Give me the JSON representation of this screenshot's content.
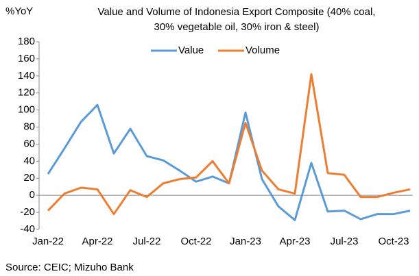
{
  "chart_data": {
    "type": "line",
    "title": [
      "Value and Volume of Indonesia Export Composite (40% coal,",
      "30% vegetable oil, 30% iron & steel)"
    ],
    "ylabel": "%YoY",
    "source": "Source: CEIC; Mizuho Bank",
    "categories": [
      "Jan-22",
      null,
      null,
      "Apr-22",
      null,
      null,
      "Jul-22",
      null,
      null,
      "Oct-22",
      null,
      null,
      "Jan-23",
      null,
      null,
      "Apr-23",
      null,
      null,
      "Jul-23",
      null,
      null,
      "Oct-23",
      null
    ],
    "series": [
      {
        "name": "Value",
        "color": "#5b9bd5",
        "values": [
          25,
          55,
          86,
          106,
          49,
          78,
          46,
          41,
          29,
          16,
          22,
          14,
          97,
          19,
          -13,
          -29,
          38,
          -19,
          -18,
          -28,
          -22,
          -22,
          -18
        ]
      },
      {
        "name": "Volume",
        "color": "#ed7d31",
        "values": [
          -18,
          2,
          9,
          7,
          -22,
          6,
          -2,
          14,
          19,
          21,
          40,
          14,
          85,
          29,
          7,
          2,
          142,
          26,
          24,
          -2,
          -2,
          3,
          7
        ]
      }
    ],
    "ylim": [
      -40,
      180
    ],
    "yticks": [
      -40,
      -20,
      0,
      20,
      40,
      60,
      80,
      100,
      120,
      140,
      160,
      180
    ],
    "grid": false,
    "legend": "top"
  }
}
